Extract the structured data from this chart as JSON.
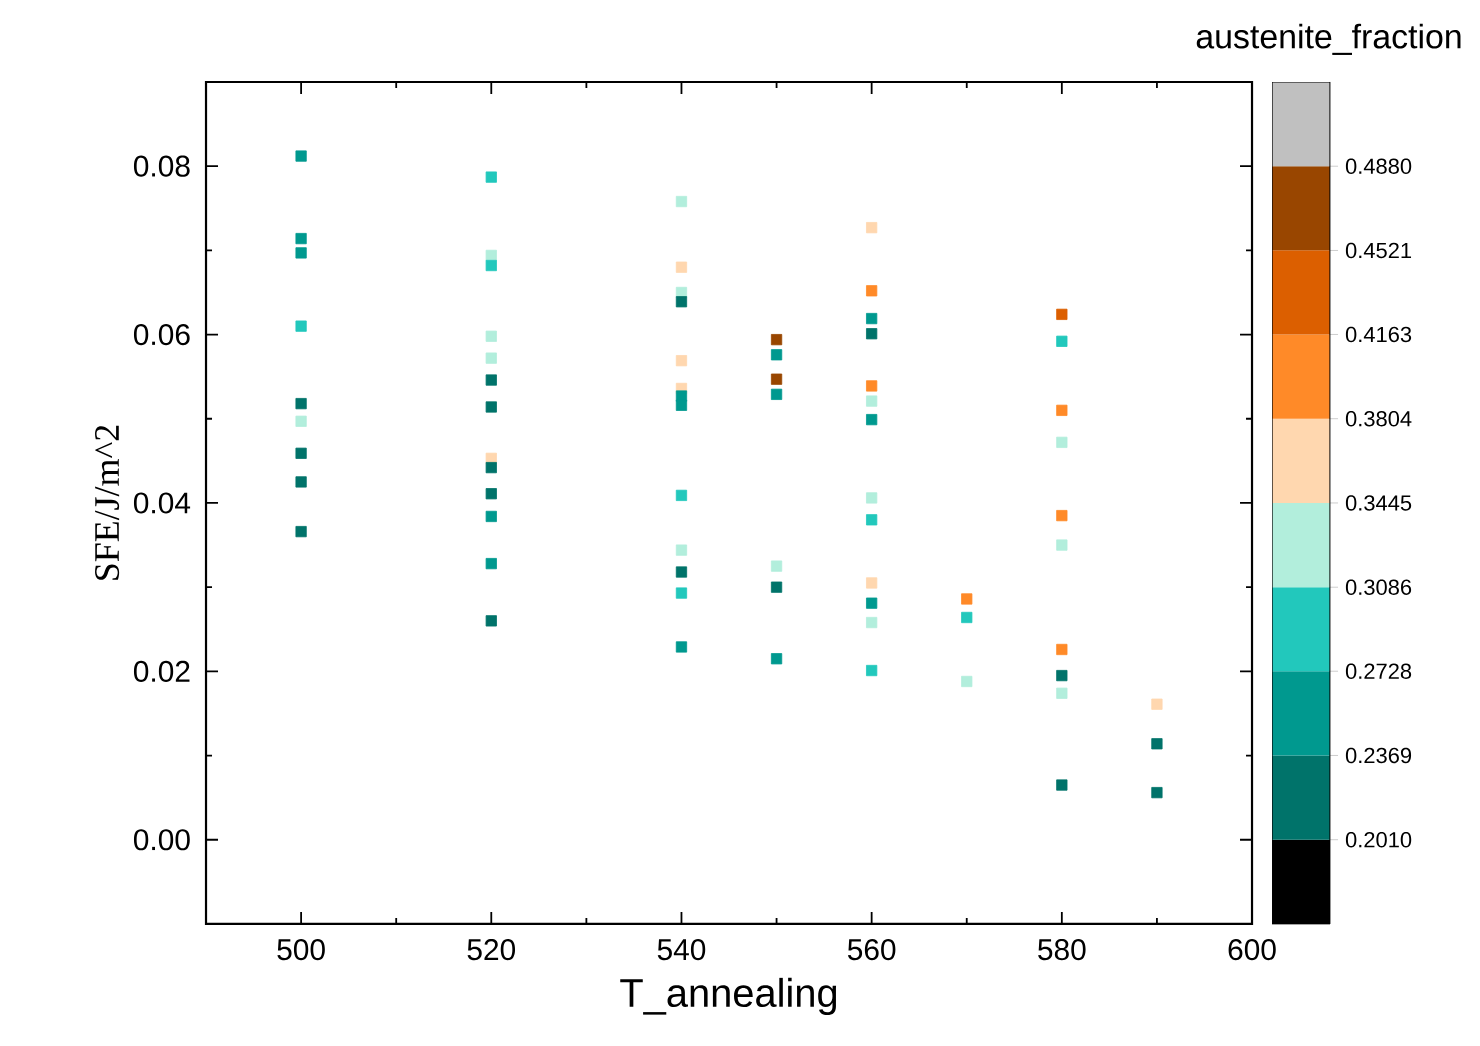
{
  "chart_data": {
    "type": "scatter",
    "xlabel": "T_annealing",
    "ylabel": "SFE/J/m^2",
    "clabel": "austenite_fraction",
    "x": [
      500,
      500,
      500,
      500,
      500,
      500,
      500,
      500,
      500,
      520,
      520,
      520,
      520,
      520,
      520,
      520,
      520,
      520,
      520,
      520,
      520,
      520,
      540,
      540,
      540,
      540,
      540,
      540,
      540,
      540,
      540,
      540,
      540,
      540,
      540,
      550,
      550,
      550,
      550,
      550,
      550,
      550,
      560,
      560,
      560,
      560,
      560,
      560,
      560,
      560,
      560,
      560,
      560,
      560,
      560,
      570,
      570,
      570,
      580,
      580,
      580,
      580,
      580,
      580,
      580,
      580,
      580,
      580,
      590,
      590,
      590
    ],
    "values": [
      0.0812,
      0.0714,
      0.0697,
      0.061,
      0.0518,
      0.0497,
      0.0459,
      0.0425,
      0.0366,
      0.0787,
      0.0694,
      0.0682,
      0.0598,
      0.0572,
      0.0546,
      0.0514,
      0.0453,
      0.0442,
      0.0411,
      0.0384,
      0.0328,
      0.026,
      0.0758,
      0.068,
      0.065,
      0.0639,
      0.0569,
      0.0536,
      0.0527,
      0.0516,
      0.0409,
      0.0344,
      0.0318,
      0.0293,
      0.0229,
      0.0594,
      0.0576,
      0.0547,
      0.0529,
      0.0325,
      0.03,
      0.0215,
      0.0727,
      0.0652,
      0.0619,
      0.0601,
      0.0539,
      0.0521,
      0.0499,
      0.0406,
      0.038,
      0.0305,
      0.0281,
      0.0258,
      0.0201,
      0.0286,
      0.0264,
      0.0188,
      0.0624,
      0.0592,
      0.051,
      0.0472,
      0.0385,
      0.035,
      0.0226,
      0.0195,
      0.0174,
      0.0065,
      0.0161,
      0.0114,
      0.0056
    ],
    "cvalues": [
      0.255,
      0.255,
      0.255,
      0.29,
      0.22,
      0.325,
      0.22,
      0.22,
      0.22,
      0.29,
      0.325,
      0.29,
      0.325,
      0.325,
      0.22,
      0.22,
      0.36,
      0.22,
      0.22,
      0.255,
      0.255,
      0.22,
      0.325,
      0.36,
      0.325,
      0.22,
      0.36,
      0.36,
      0.255,
      0.255,
      0.29,
      0.325,
      0.22,
      0.29,
      0.255,
      0.47,
      0.255,
      0.47,
      0.255,
      0.325,
      0.22,
      0.255,
      0.36,
      0.4,
      0.255,
      0.22,
      0.4,
      0.325,
      0.255,
      0.325,
      0.29,
      0.36,
      0.255,
      0.325,
      0.29,
      0.4,
      0.29,
      0.325,
      0.43,
      0.29,
      0.4,
      0.325,
      0.4,
      0.325,
      0.4,
      0.22,
      0.325,
      0.22,
      0.36,
      0.22,
      0.22
    ],
    "marker": "square",
    "xlim": [
      490,
      600
    ],
    "ylim": [
      -0.01,
      0.09
    ],
    "xticks": [
      500,
      520,
      540,
      560,
      580,
      600
    ],
    "yticks": [
      {
        "value": 0,
        "label": "0.00"
      },
      {
        "value": 0.02,
        "label": "0.02"
      },
      {
        "value": 0.04,
        "label": "0.04"
      },
      {
        "value": 0.06,
        "label": "0.06"
      },
      {
        "value": 0.08,
        "label": "0.08"
      }
    ],
    "clim": [
      0.1651,
      0.5239
    ],
    "cticks": [
      {
        "value": 0.201,
        "label": "0.2010"
      },
      {
        "value": 0.2369,
        "label": "0.2369"
      },
      {
        "value": 0.2728,
        "label": "0.2728"
      },
      {
        "value": 0.3086,
        "label": "0.3086"
      },
      {
        "value": 0.3445,
        "label": "0.3445"
      },
      {
        "value": 0.3804,
        "label": "0.3804"
      },
      {
        "value": 0.4163,
        "label": "0.4163"
      },
      {
        "value": 0.4521,
        "label": "0.4521"
      },
      {
        "value": 0.488,
        "label": "0.4880"
      }
    ]
  }
}
